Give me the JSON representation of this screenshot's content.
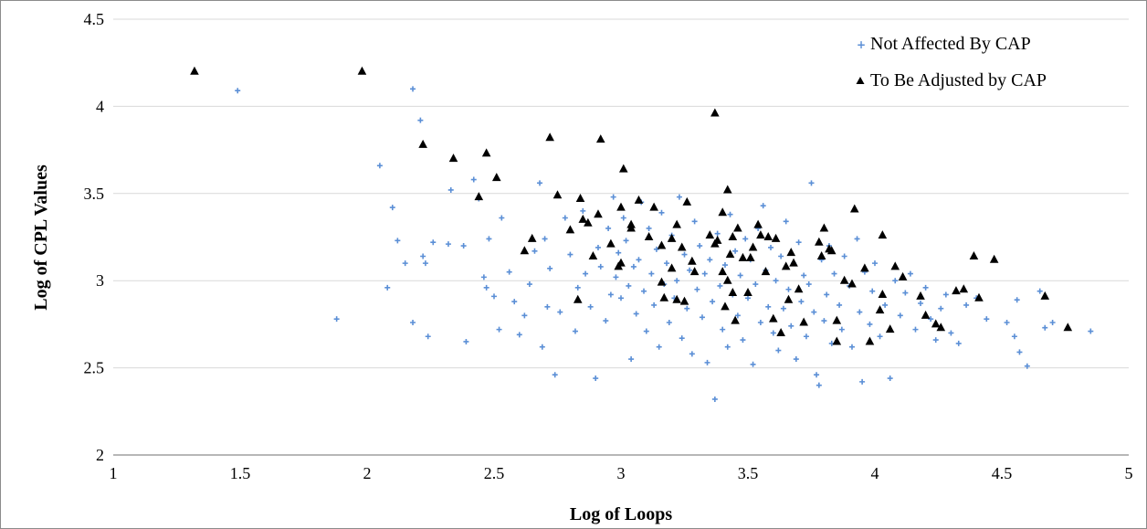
{
  "chart_data": {
    "type": "scatter",
    "title": "",
    "xlabel": "Log of Loops",
    "ylabel": "Log of CPL  Values",
    "xlim": [
      1,
      5
    ],
    "ylim": [
      2,
      4.5
    ],
    "x_ticks": [
      "1",
      "1.5",
      "2",
      "2.5",
      "3",
      "3.5",
      "4",
      "4.5",
      "5"
    ],
    "y_ticks": [
      "2",
      "2.5",
      "3",
      "3.5",
      "4",
      "4.5"
    ],
    "grid": "horizontal",
    "legend_position": "top-right",
    "colors": {
      "not_affected": "#5b8fd6",
      "adjusted": "#000000",
      "grid": "#d9d9d9",
      "axis": "#8c8c8c"
    },
    "series": [
      {
        "name": "Not Affected By CAP",
        "marker": "plus",
        "points": [
          [
            1.49,
            4.09
          ],
          [
            1.88,
            2.78
          ],
          [
            2.05,
            3.66
          ],
          [
            2.08,
            2.96
          ],
          [
            2.1,
            3.42
          ],
          [
            2.12,
            3.23
          ],
          [
            2.15,
            3.1
          ],
          [
            2.18,
            4.1
          ],
          [
            2.18,
            2.76
          ],
          [
            2.21,
            3.92
          ],
          [
            2.22,
            3.14
          ],
          [
            2.23,
            3.1
          ],
          [
            2.24,
            2.68
          ],
          [
            2.26,
            3.22
          ],
          [
            2.32,
            3.21
          ],
          [
            2.33,
            3.52
          ],
          [
            2.38,
            3.2
          ],
          [
            2.39,
            2.65
          ],
          [
            2.42,
            3.58
          ],
          [
            2.44,
            3.47
          ],
          [
            2.46,
            3.02
          ],
          [
            2.47,
            2.96
          ],
          [
            2.48,
            3.24
          ],
          [
            2.5,
            2.91
          ],
          [
            2.52,
            2.72
          ],
          [
            2.53,
            3.36
          ],
          [
            2.56,
            3.05
          ],
          [
            2.58,
            2.88
          ],
          [
            2.6,
            2.69
          ],
          [
            2.62,
            2.8
          ],
          [
            2.64,
            2.98
          ],
          [
            2.66,
            3.17
          ],
          [
            2.68,
            3.56
          ],
          [
            2.69,
            2.62
          ],
          [
            2.7,
            3.24
          ],
          [
            2.71,
            2.85
          ],
          [
            2.72,
            3.07
          ],
          [
            2.74,
            2.46
          ],
          [
            2.76,
            2.82
          ],
          [
            2.78,
            3.36
          ],
          [
            2.8,
            3.15
          ],
          [
            2.82,
            2.71
          ],
          [
            2.83,
            2.96
          ],
          [
            2.85,
            3.4
          ],
          [
            2.86,
            3.04
          ],
          [
            2.88,
            2.85
          ],
          [
            2.9,
            2.44
          ],
          [
            2.91,
            3.19
          ],
          [
            2.92,
            3.08
          ],
          [
            2.94,
            2.77
          ],
          [
            2.95,
            3.3
          ],
          [
            2.96,
            2.92
          ],
          [
            2.97,
            3.48
          ],
          [
            2.98,
            3.02
          ],
          [
            2.99,
            3.16
          ],
          [
            3.0,
            2.9
          ],
          [
            3.01,
            3.36
          ],
          [
            3.02,
            3.23
          ],
          [
            3.03,
            2.97
          ],
          [
            3.04,
            2.55
          ],
          [
            3.05,
            3.08
          ],
          [
            3.06,
            2.81
          ],
          [
            3.07,
            3.12
          ],
          [
            3.08,
            3.45
          ],
          [
            3.09,
            2.94
          ],
          [
            3.1,
            2.71
          ],
          [
            3.11,
            3.3
          ],
          [
            3.12,
            3.04
          ],
          [
            3.13,
            2.86
          ],
          [
            3.14,
            3.18
          ],
          [
            3.15,
            2.62
          ],
          [
            3.16,
            3.39
          ],
          [
            3.17,
            2.98
          ],
          [
            3.18,
            3.1
          ],
          [
            3.19,
            2.76
          ],
          [
            3.2,
            3.26
          ],
          [
            3.21,
            2.9
          ],
          [
            3.22,
            3.0
          ],
          [
            3.23,
            3.48
          ],
          [
            3.24,
            2.67
          ],
          [
            3.25,
            3.15
          ],
          [
            3.26,
            2.84
          ],
          [
            3.27,
            3.06
          ],
          [
            3.28,
            2.58
          ],
          [
            3.29,
            3.34
          ],
          [
            3.3,
            2.95
          ],
          [
            3.31,
            3.2
          ],
          [
            3.32,
            2.79
          ],
          [
            3.33,
            3.04
          ],
          [
            3.34,
            2.53
          ],
          [
            3.35,
            3.12
          ],
          [
            3.36,
            2.88
          ],
          [
            3.37,
            2.32
          ],
          [
            3.38,
            3.27
          ],
          [
            3.39,
            2.97
          ],
          [
            3.4,
            2.72
          ],
          [
            3.41,
            3.09
          ],
          [
            3.42,
            2.62
          ],
          [
            3.43,
            3.38
          ],
          [
            3.44,
            2.92
          ],
          [
            3.45,
            3.17
          ],
          [
            3.46,
            2.8
          ],
          [
            3.47,
            3.03
          ],
          [
            3.48,
            2.66
          ],
          [
            3.49,
            3.24
          ],
          [
            3.5,
            2.9
          ],
          [
            3.51,
            3.12
          ],
          [
            3.52,
            2.52
          ],
          [
            3.53,
            2.98
          ],
          [
            3.54,
            3.3
          ],
          [
            3.55,
            2.76
          ],
          [
            3.56,
            3.43
          ],
          [
            3.57,
            3.06
          ],
          [
            3.58,
            2.85
          ],
          [
            3.59,
            3.19
          ],
          [
            3.6,
            2.7
          ],
          [
            3.61,
            3.0
          ],
          [
            3.62,
            2.6
          ],
          [
            3.63,
            3.14
          ],
          [
            3.64,
            2.84
          ],
          [
            3.65,
            3.34
          ],
          [
            3.66,
            2.95
          ],
          [
            3.67,
            2.74
          ],
          [
            3.68,
            3.1
          ],
          [
            3.69,
            2.55
          ],
          [
            3.7,
            3.22
          ],
          [
            3.71,
            2.88
          ],
          [
            3.72,
            3.03
          ],
          [
            3.73,
            2.68
          ],
          [
            3.74,
            2.98
          ],
          [
            3.75,
            3.56
          ],
          [
            3.76,
            2.82
          ],
          [
            3.77,
            2.46
          ],
          [
            3.78,
            2.4
          ],
          [
            3.79,
            3.12
          ],
          [
            3.8,
            2.77
          ],
          [
            3.81,
            2.92
          ],
          [
            3.82,
            3.2
          ],
          [
            3.83,
            2.64
          ],
          [
            3.84,
            3.04
          ],
          [
            3.86,
            2.86
          ],
          [
            3.87,
            2.72
          ],
          [
            3.88,
            3.14
          ],
          [
            3.9,
            2.97
          ],
          [
            3.91,
            2.62
          ],
          [
            3.93,
            3.24
          ],
          [
            3.94,
            2.82
          ],
          [
            3.95,
            2.42
          ],
          [
            3.96,
            3.05
          ],
          [
            3.98,
            2.75
          ],
          [
            3.99,
            2.94
          ],
          [
            4.0,
            3.1
          ],
          [
            4.02,
            2.68
          ],
          [
            4.04,
            2.86
          ],
          [
            4.06,
            2.44
          ],
          [
            4.08,
            3.0
          ],
          [
            4.1,
            2.8
          ],
          [
            4.12,
            2.93
          ],
          [
            4.14,
            3.04
          ],
          [
            4.16,
            2.72
          ],
          [
            4.18,
            2.87
          ],
          [
            4.2,
            2.96
          ],
          [
            4.22,
            2.78
          ],
          [
            4.24,
            2.66
          ],
          [
            4.26,
            2.84
          ],
          [
            4.28,
            2.92
          ],
          [
            4.3,
            2.7
          ],
          [
            4.33,
            2.64
          ],
          [
            4.36,
            2.86
          ],
          [
            4.4,
            2.9
          ],
          [
            4.44,
            2.78
          ],
          [
            4.52,
            2.76
          ],
          [
            4.55,
            2.68
          ],
          [
            4.56,
            2.89
          ],
          [
            4.57,
            2.59
          ],
          [
            4.6,
            2.51
          ],
          [
            4.65,
            2.94
          ],
          [
            4.67,
            2.73
          ],
          [
            4.7,
            2.76
          ],
          [
            4.85,
            2.71
          ]
        ]
      },
      {
        "name": "To Be Adjusted by CAP",
        "marker": "triangle",
        "points": [
          [
            1.32,
            4.2
          ],
          [
            1.98,
            4.2
          ],
          [
            2.22,
            3.78
          ],
          [
            2.34,
            3.7
          ],
          [
            2.44,
            3.48
          ],
          [
            2.47,
            3.73
          ],
          [
            2.51,
            3.59
          ],
          [
            2.62,
            3.17
          ],
          [
            2.65,
            3.24
          ],
          [
            2.72,
            3.82
          ],
          [
            2.75,
            3.49
          ],
          [
            2.8,
            3.29
          ],
          [
            2.83,
            2.89
          ],
          [
            2.84,
            3.47
          ],
          [
            2.85,
            3.35
          ],
          [
            2.87,
            3.33
          ],
          [
            2.89,
            3.14
          ],
          [
            2.91,
            3.38
          ],
          [
            2.92,
            3.81
          ],
          [
            2.96,
            3.21
          ],
          [
            2.99,
            3.08
          ],
          [
            3.0,
            3.1
          ],
          [
            3.0,
            3.42
          ],
          [
            3.01,
            3.64
          ],
          [
            3.04,
            3.3
          ],
          [
            3.04,
            3.32
          ],
          [
            3.07,
            3.46
          ],
          [
            3.11,
            3.25
          ],
          [
            3.13,
            3.42
          ],
          [
            3.16,
            2.99
          ],
          [
            3.16,
            3.2
          ],
          [
            3.17,
            2.9
          ],
          [
            3.2,
            3.24
          ],
          [
            3.2,
            3.07
          ],
          [
            3.22,
            3.32
          ],
          [
            3.22,
            2.89
          ],
          [
            3.24,
            3.19
          ],
          [
            3.25,
            2.88
          ],
          [
            3.26,
            3.45
          ],
          [
            3.28,
            3.11
          ],
          [
            3.29,
            3.05
          ],
          [
            3.35,
            3.26
          ],
          [
            3.37,
            3.96
          ],
          [
            3.37,
            3.21
          ],
          [
            3.38,
            3.23
          ],
          [
            3.4,
            3.05
          ],
          [
            3.4,
            3.39
          ],
          [
            3.41,
            2.85
          ],
          [
            3.42,
            3.52
          ],
          [
            3.42,
            3.0
          ],
          [
            3.43,
            3.15
          ],
          [
            3.44,
            2.93
          ],
          [
            3.44,
            3.25
          ],
          [
            3.45,
            2.77
          ],
          [
            3.46,
            3.3
          ],
          [
            3.48,
            3.13
          ],
          [
            3.5,
            2.93
          ],
          [
            3.51,
            3.13
          ],
          [
            3.52,
            3.19
          ],
          [
            3.54,
            3.32
          ],
          [
            3.55,
            3.26
          ],
          [
            3.57,
            3.05
          ],
          [
            3.58,
            3.25
          ],
          [
            3.6,
            2.78
          ],
          [
            3.61,
            3.24
          ],
          [
            3.63,
            2.7
          ],
          [
            3.65,
            3.08
          ],
          [
            3.66,
            2.89
          ],
          [
            3.67,
            3.16
          ],
          [
            3.68,
            3.1
          ],
          [
            3.7,
            2.95
          ],
          [
            3.72,
            2.76
          ],
          [
            3.78,
            3.22
          ],
          [
            3.79,
            3.14
          ],
          [
            3.8,
            3.3
          ],
          [
            3.82,
            3.18
          ],
          [
            3.83,
            3.17
          ],
          [
            3.85,
            2.77
          ],
          [
            3.85,
            2.65
          ],
          [
            3.88,
            3.0
          ],
          [
            3.91,
            2.98
          ],
          [
            3.92,
            3.41
          ],
          [
            3.96,
            3.07
          ],
          [
            3.98,
            2.65
          ],
          [
            4.02,
            2.83
          ],
          [
            4.03,
            2.92
          ],
          [
            4.03,
            3.26
          ],
          [
            4.06,
            2.72
          ],
          [
            4.08,
            3.08
          ],
          [
            4.11,
            3.02
          ],
          [
            4.18,
            2.91
          ],
          [
            4.2,
            2.8
          ],
          [
            4.24,
            2.75
          ],
          [
            4.26,
            2.73
          ],
          [
            4.32,
            2.94
          ],
          [
            4.35,
            2.95
          ],
          [
            4.39,
            3.14
          ],
          [
            4.41,
            2.9
          ],
          [
            4.47,
            3.12
          ],
          [
            4.67,
            2.91
          ],
          [
            4.76,
            2.73
          ]
        ]
      }
    ]
  }
}
